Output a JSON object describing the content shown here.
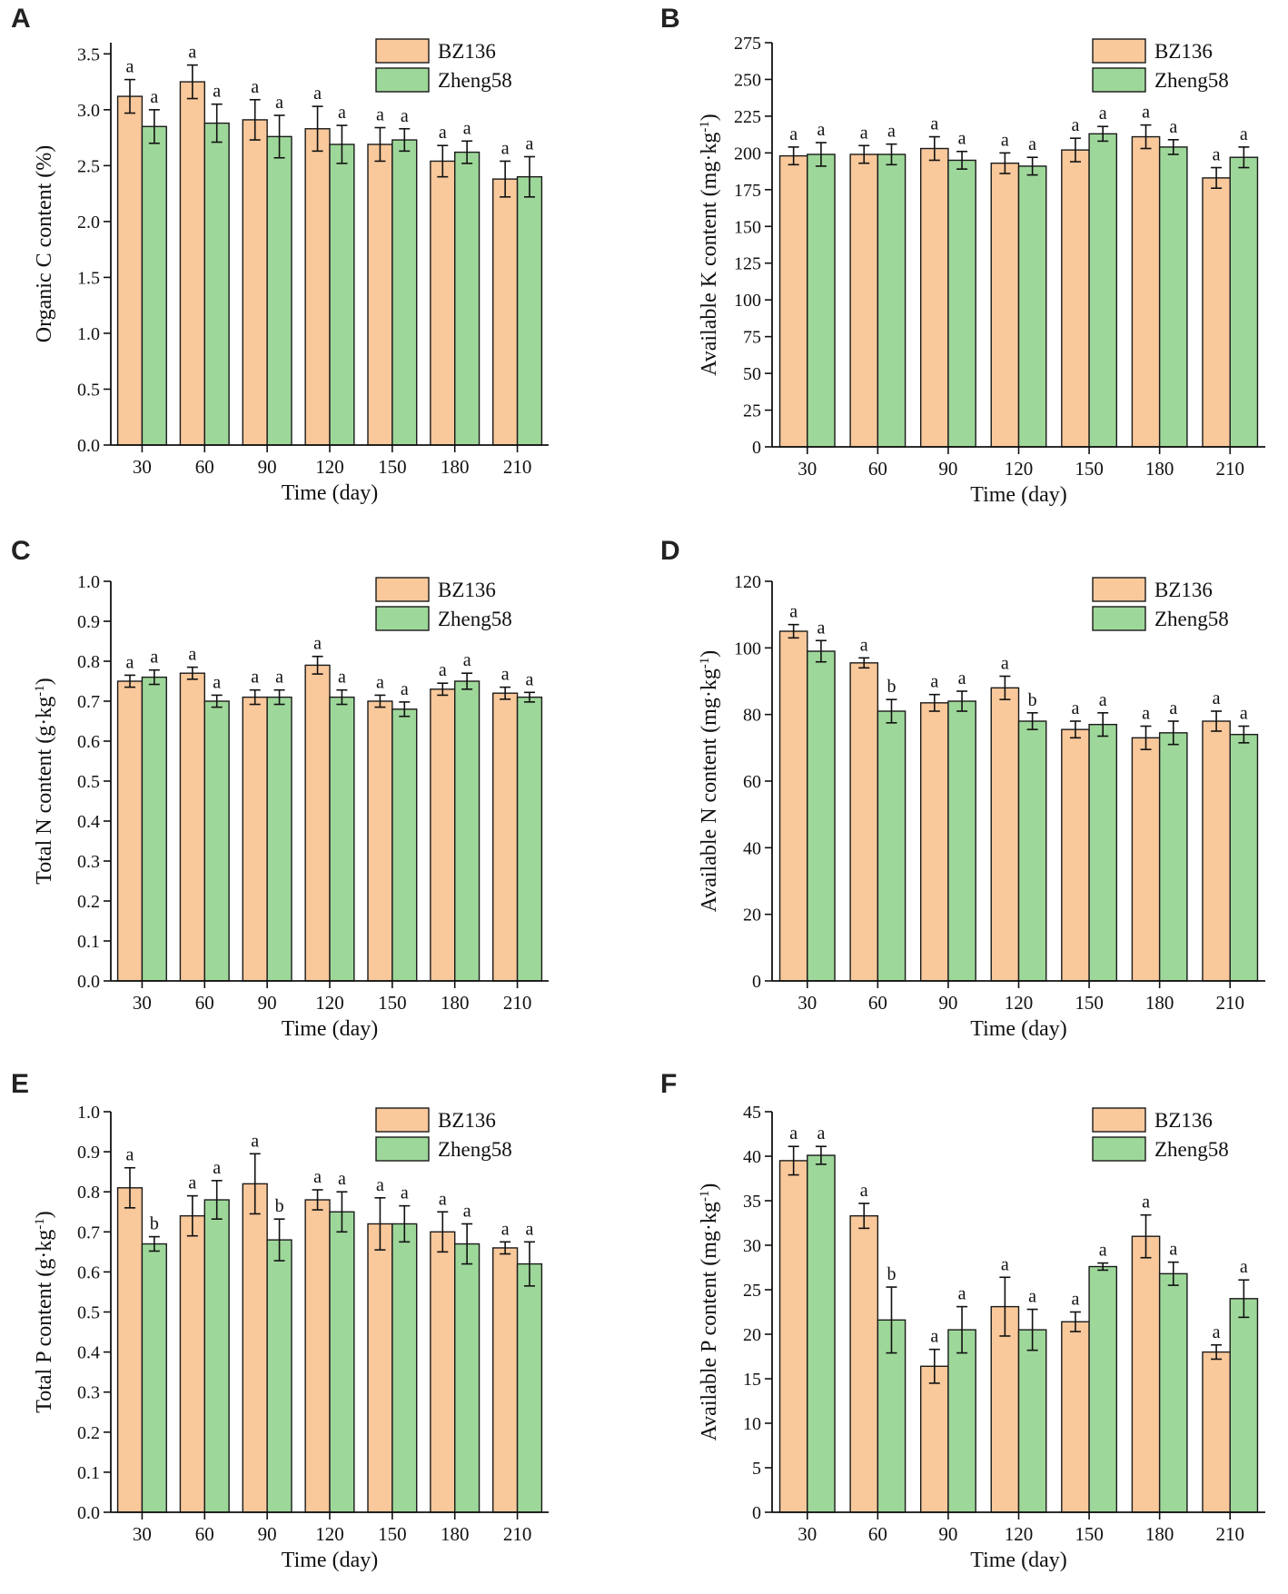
{
  "figure": {
    "legend": {
      "series1": "BZ136",
      "series2": "Zheng58"
    },
    "colors": {
      "series1": "#F9C89B",
      "series2": "#9ED79A",
      "edge": "#1a1a1a"
    }
  },
  "chart_data": [
    {
      "panel": "A",
      "type": "bar",
      "ylabel": "Organic C content (%)",
      "xlabel": "Time (day)",
      "categories": [
        "30",
        "60",
        "90",
        "120",
        "150",
        "180",
        "210"
      ],
      "ylim": [
        0,
        3.6
      ],
      "yticks": [
        "0.0",
        "0.5",
        "1.0",
        "1.5",
        "2.0",
        "2.5",
        "3.0",
        "3.5"
      ],
      "series": [
        {
          "name": "BZ136",
          "values": [
            3.12,
            3.25,
            2.91,
            2.83,
            2.69,
            2.54,
            2.38
          ],
          "errors": [
            0.15,
            0.15,
            0.18,
            0.2,
            0.15,
            0.14,
            0.16
          ],
          "letters": [
            "a",
            "a",
            "a",
            "a",
            "a",
            "a",
            "a"
          ]
        },
        {
          "name": "Zheng58",
          "values": [
            2.85,
            2.88,
            2.76,
            2.69,
            2.73,
            2.62,
            2.4
          ],
          "errors": [
            0.15,
            0.17,
            0.19,
            0.17,
            0.1,
            0.1,
            0.18
          ],
          "letters": [
            "a",
            "a",
            "a",
            "a",
            "a",
            "a",
            "a"
          ]
        }
      ]
    },
    {
      "panel": "B",
      "type": "bar",
      "ylabel": "Available K content (mg·kg",
      "ylabel_sup": "-1",
      "ylabel_end": ")",
      "xlabel": "Time (day)",
      "categories": [
        "30",
        "60",
        "90",
        "120",
        "150",
        "180",
        "210"
      ],
      "ylim": [
        0,
        275
      ],
      "yticks": [
        "0",
        "25",
        "50",
        "75",
        "100",
        "125",
        "150",
        "175",
        "200",
        "225",
        "250",
        "275"
      ],
      "series": [
        {
          "name": "BZ136",
          "values": [
            198,
            199,
            203,
            193,
            202,
            211,
            183
          ],
          "errors": [
            6,
            6,
            8,
            7,
            8,
            8,
            7
          ],
          "letters": [
            "a",
            "a",
            "a",
            "a",
            "a",
            "a",
            "a"
          ]
        },
        {
          "name": "Zheng58",
          "values": [
            199,
            199,
            195,
            191,
            213,
            204,
            197
          ],
          "errors": [
            8,
            7,
            6,
            6,
            5,
            5,
            7
          ],
          "letters": [
            "a",
            "a",
            "a",
            "a",
            "a",
            "a",
            "a"
          ]
        }
      ]
    },
    {
      "panel": "C",
      "type": "bar",
      "ylabel": "Total N content (g·kg",
      "ylabel_sup": "-1",
      "ylabel_end": ")",
      "xlabel": "Time (day)",
      "categories": [
        "30",
        "60",
        "90",
        "120",
        "150",
        "180",
        "210"
      ],
      "ylim": [
        0,
        1.0
      ],
      "yticks": [
        "0.0",
        "0.1",
        "0.2",
        "0.3",
        "0.4",
        "0.5",
        "0.6",
        "0.7",
        "0.8",
        "0.9",
        "1.0"
      ],
      "series": [
        {
          "name": "BZ136",
          "values": [
            0.75,
            0.77,
            0.71,
            0.79,
            0.7,
            0.73,
            0.72
          ],
          "errors": [
            0.015,
            0.015,
            0.018,
            0.022,
            0.015,
            0.015,
            0.015
          ],
          "letters": [
            "a",
            "a",
            "a",
            "a",
            "a",
            "a",
            "a"
          ]
        },
        {
          "name": "Zheng58",
          "values": [
            0.76,
            0.7,
            0.71,
            0.71,
            0.68,
            0.75,
            0.71
          ],
          "errors": [
            0.018,
            0.015,
            0.018,
            0.018,
            0.018,
            0.02,
            0.012
          ],
          "letters": [
            "a",
            "a",
            "a",
            "a",
            "a",
            "a",
            "a"
          ]
        }
      ]
    },
    {
      "panel": "D",
      "type": "bar",
      "ylabel": "Available N content (mg·kg",
      "ylabel_sup": "-1",
      "ylabel_end": ")",
      "xlabel": "Time (day)",
      "categories": [
        "30",
        "60",
        "90",
        "120",
        "150",
        "180",
        "210"
      ],
      "ylim": [
        0,
        120
      ],
      "yticks": [
        "0",
        "20",
        "40",
        "60",
        "80",
        "100",
        "120"
      ],
      "series": [
        {
          "name": "BZ136",
          "values": [
            105,
            95.5,
            83.5,
            88,
            75.5,
            73,
            78
          ],
          "errors": [
            2,
            1.5,
            2.5,
            3.5,
            2.5,
            3.5,
            3
          ],
          "letters": [
            "a",
            "a",
            "a",
            "a",
            "a",
            "a",
            "a"
          ]
        },
        {
          "name": "Zheng58",
          "values": [
            99,
            81,
            84,
            78,
            77,
            74.5,
            74
          ],
          "errors": [
            3.2,
            3.5,
            3,
            2.5,
            3.5,
            3.5,
            2.5
          ],
          "letters": [
            "a",
            "b",
            "a",
            "b",
            "a",
            "a",
            "a"
          ]
        }
      ]
    },
    {
      "panel": "E",
      "type": "bar",
      "ylabel": "Total P content (g·kg",
      "ylabel_sup": "-1",
      "ylabel_end": ")",
      "xlabel": "Time (day)",
      "categories": [
        "30",
        "60",
        "90",
        "120",
        "150",
        "180",
        "210"
      ],
      "ylim": [
        0,
        1.0
      ],
      "yticks": [
        "0.0",
        "0.1",
        "0.2",
        "0.3",
        "0.4",
        "0.5",
        "0.6",
        "0.7",
        "0.8",
        "0.9",
        "1.0"
      ],
      "series": [
        {
          "name": "BZ136",
          "values": [
            0.81,
            0.74,
            0.82,
            0.78,
            0.72,
            0.7,
            0.66
          ],
          "errors": [
            0.05,
            0.05,
            0.075,
            0.025,
            0.065,
            0.05,
            0.015
          ],
          "letters": [
            "a",
            "a",
            "a",
            "a",
            "a",
            "a",
            "a"
          ]
        },
        {
          "name": "Zheng58",
          "values": [
            0.67,
            0.78,
            0.68,
            0.75,
            0.72,
            0.67,
            0.62
          ],
          "errors": [
            0.018,
            0.048,
            0.052,
            0.05,
            0.045,
            0.05,
            0.055
          ],
          "letters": [
            "b",
            "a",
            "b",
            "a",
            "a",
            "a",
            "a"
          ]
        }
      ]
    },
    {
      "panel": "F",
      "type": "bar",
      "ylabel": "Available P content (mg·kg",
      "ylabel_sup": "-1",
      "ylabel_end": ")",
      "xlabel": "Time (day)",
      "categories": [
        "30",
        "60",
        "90",
        "120",
        "150",
        "180",
        "210"
      ],
      "ylim": [
        0,
        45
      ],
      "yticks": [
        "0",
        "5",
        "10",
        "15",
        "20",
        "25",
        "30",
        "35",
        "40",
        "45"
      ],
      "series": [
        {
          "name": "BZ136",
          "values": [
            39.5,
            33.3,
            16.4,
            23.1,
            21.4,
            31,
            18
          ],
          "errors": [
            1.6,
            1.4,
            1.9,
            3.3,
            1.1,
            2.4,
            0.8
          ],
          "letters": [
            "a",
            "a",
            "a",
            "a",
            "a",
            "a",
            "a"
          ]
        },
        {
          "name": "Zheng58",
          "values": [
            40.1,
            21.6,
            20.5,
            20.5,
            27.6,
            26.8,
            24
          ],
          "errors": [
            1.0,
            3.7,
            2.6,
            2.3,
            0.4,
            1.3,
            2.1
          ],
          "letters": [
            "a",
            "b",
            "a",
            "a",
            "a",
            "a",
            "a"
          ]
        }
      ]
    }
  ]
}
